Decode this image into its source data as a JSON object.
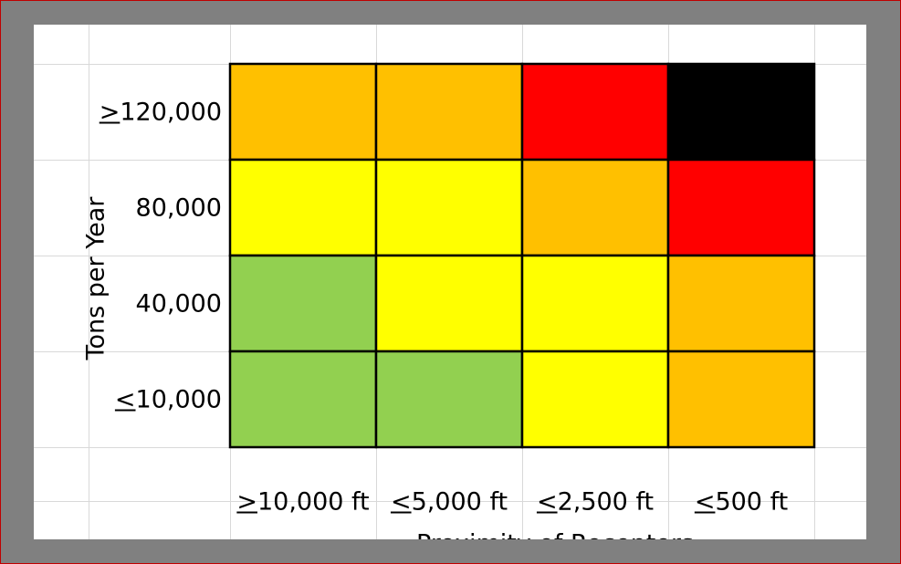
{
  "chart_data": {
    "type": "heatmap",
    "title": "",
    "xlabel": "Proximity of Receptors",
    "ylabel": "Tons per Year",
    "x_categories": [
      {
        "symbol": ">",
        "label": "10,000 ft"
      },
      {
        "symbol": "<",
        "label": "5,000 ft"
      },
      {
        "symbol": "<",
        "label": "2,500 ft"
      },
      {
        "symbol": "<",
        "label": "500 ft"
      }
    ],
    "y_categories_top_to_bottom": [
      {
        "symbol": ">",
        "label": "120,000"
      },
      {
        "symbol": "",
        "label": "80,000"
      },
      {
        "symbol": "",
        "label": "40,000"
      },
      {
        "symbol": "<",
        "label": "10,000"
      }
    ],
    "cell_colors_top_to_bottom": [
      [
        "#FFC000",
        "#FFC000",
        "#FF0000",
        "#000000"
      ],
      [
        "#FFFF00",
        "#FFFF00",
        "#FFC000",
        "#FF0000"
      ],
      [
        "#92D050",
        "#FFFF00",
        "#FFFF00",
        "#FFC000"
      ],
      [
        "#92D050",
        "#92D050",
        "#FFFF00",
        "#FFC000"
      ]
    ],
    "grid": true,
    "legend": "none"
  }
}
